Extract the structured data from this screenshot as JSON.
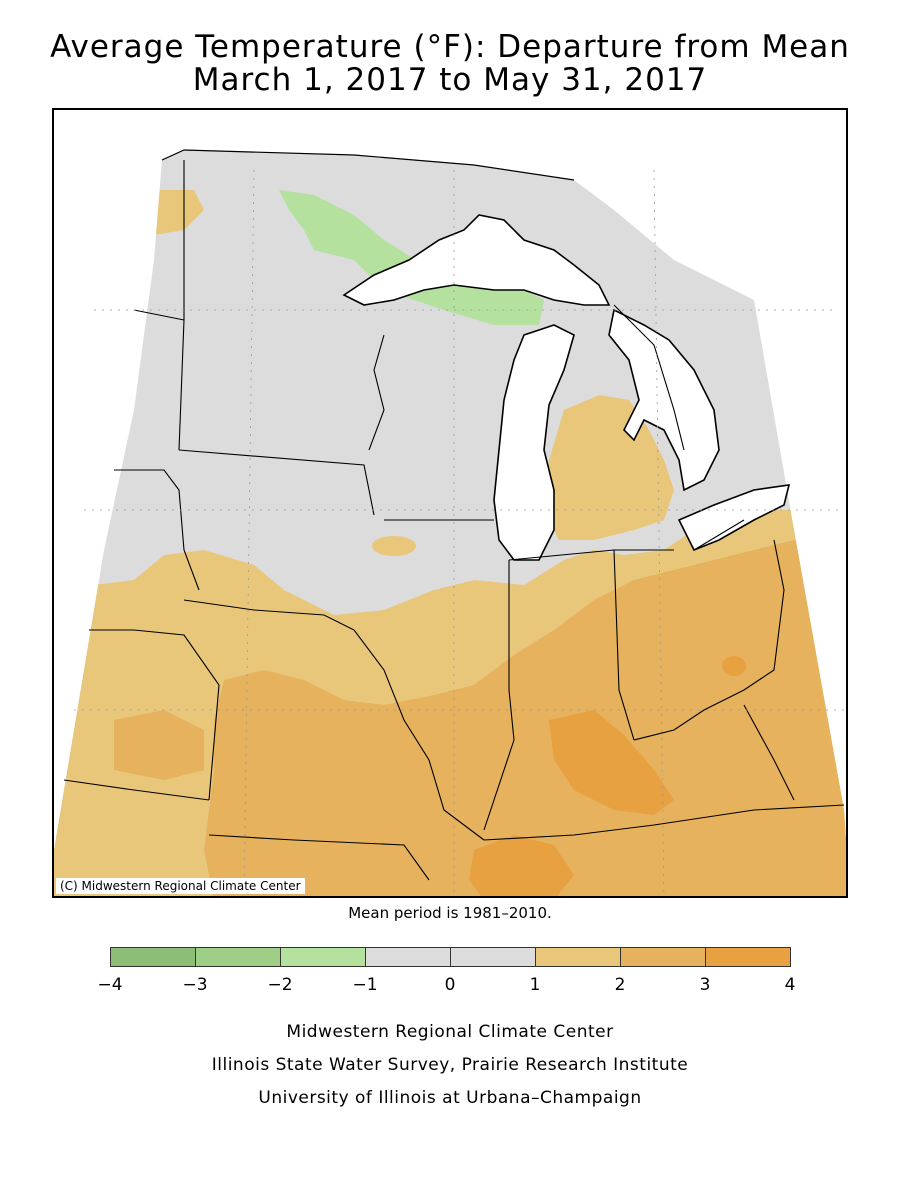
{
  "title_line1": "Average Temperature (°F): Departure from Mean",
  "title_line2": "March 1, 2017 to May 31, 2017",
  "copyright": "(C) Midwestern Regional Climate Center",
  "mean_note": "Mean period is 1981–2010.",
  "legend": {
    "ticks": [
      "−4",
      "−3",
      "−2",
      "−1",
      "0",
      "1",
      "2",
      "3",
      "4"
    ],
    "bins": [
      {
        "range": "-4 to -3",
        "color": "#8cbe78"
      },
      {
        "range": "-3 to -2",
        "color": "#9fcf86"
      },
      {
        "range": "-2 to -1",
        "color": "#b4e19e"
      },
      {
        "range": "-1 to 0",
        "color": "#dcdcdc"
      },
      {
        "range": "0 to 1",
        "color": "#dcdcdc"
      },
      {
        "range": "1 to 2",
        "color": "#e9c77a"
      },
      {
        "range": "2 to 3",
        "color": "#e6b25e"
      },
      {
        "range": "3 to 4",
        "color": "#e7a140"
      }
    ]
  },
  "credits": {
    "line1": "Midwestern Regional Climate Center",
    "line2": "Illinois State Water Survey, Prairie Research Institute",
    "line3": "University of Illinois at Urbana–Champaign"
  }
}
